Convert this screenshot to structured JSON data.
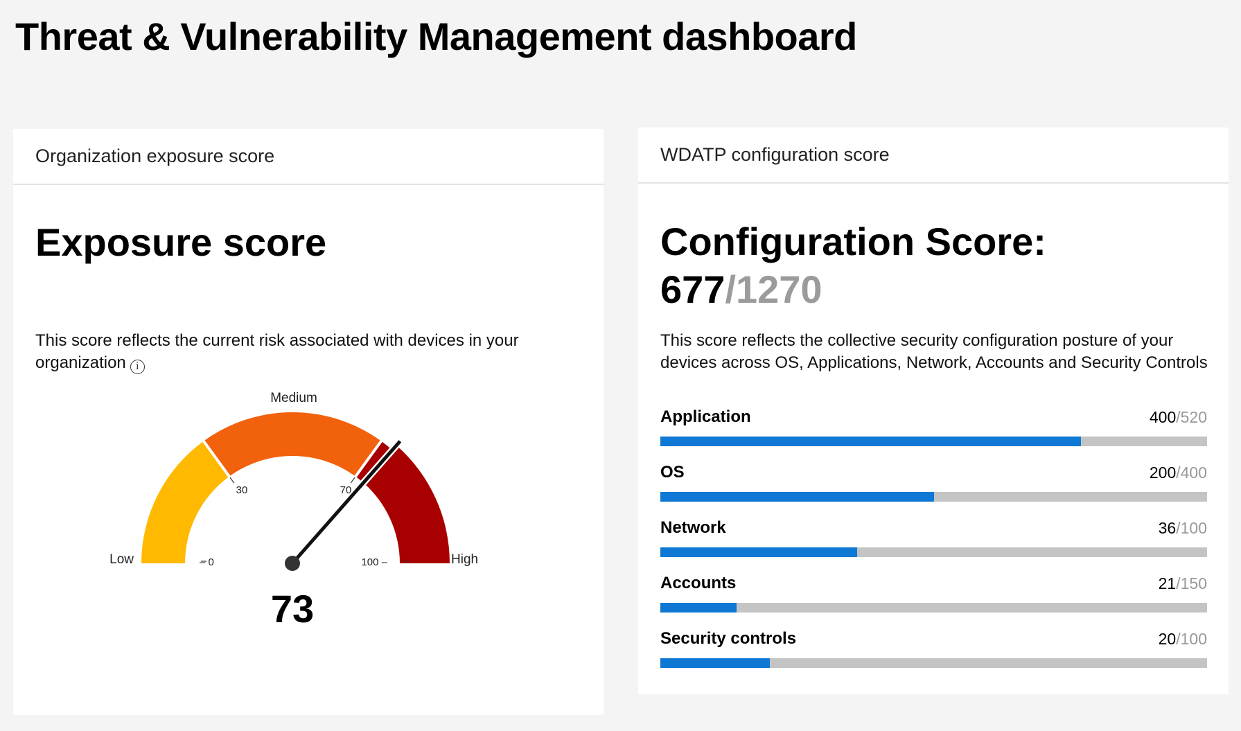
{
  "page": {
    "title": "Threat & Vulnerability Management dashboard"
  },
  "exposure_card": {
    "header": "Organization exposure score",
    "title": "Exposure score",
    "description": "This score reflects the current risk associated with devices in your organization",
    "info_icon": "info-icon",
    "gauge": {
      "min": 0,
      "max": 100,
      "value": 73,
      "value_label": "73",
      "label_low": "Low",
      "label_medium": "Medium",
      "label_high": "High",
      "tick_0": "0",
      "tick_30": "30",
      "tick_70": "70",
      "tick_100": "100",
      "segments": [
        {
          "from": 0,
          "to": 30,
          "color": "#FFB900"
        },
        {
          "from": 30,
          "to": 70,
          "color": "#F2610C"
        },
        {
          "from": 70,
          "to": 100,
          "color": "#A80000"
        }
      ]
    }
  },
  "config_card": {
    "header": "WDATP configuration score",
    "title": "Configuration Score:",
    "score": "677",
    "score_max": "/1270",
    "description": "This score reflects the collective security configuration posture of your devices across OS, Applications, Network, Accounts and Security Controls",
    "bar_color": "#0F78D4",
    "track_color": "#C4C4C4",
    "metrics": [
      {
        "label": "Application",
        "value": 400,
        "max": 520,
        "value_text": "400",
        "max_text": "/520"
      },
      {
        "label": "OS",
        "value": 200,
        "max": 400,
        "value_text": "200",
        "max_text": "/400"
      },
      {
        "label": "Network",
        "value": 36,
        "max": 100,
        "value_text": "36",
        "max_text": "/100"
      },
      {
        "label": "Accounts",
        "value": 21,
        "max": 150,
        "value_text": "21",
        "max_text": "/150"
      },
      {
        "label": "Security controls",
        "value": 20,
        "max": 100,
        "value_text": "20",
        "max_text": "/100"
      }
    ]
  }
}
